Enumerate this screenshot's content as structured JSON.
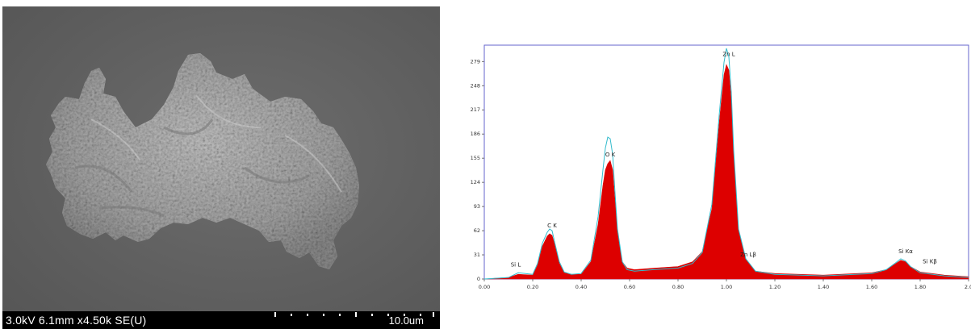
{
  "sem": {
    "parameters_label": "3.0kV 6.1mm x4.50k SE(U)",
    "scale_bar_label": "10.0um",
    "colors": {
      "background": "#5f5f5f",
      "particle": "#a9a9a9",
      "footer": "#000000"
    }
  },
  "chart_data": {
    "type": "area",
    "title": "",
    "xlabel": "",
    "ylabel": "",
    "xlim": [
      0,
      2.0
    ],
    "ylim": [
      0,
      300
    ],
    "x_tick_labels": [
      "0.00",
      "0.20",
      "0.40",
      "0.60",
      "0.80",
      "1.00",
      "1.20",
      "1.40",
      "1.60",
      "1.80",
      "2.0"
    ],
    "y_tick_labels": [
      "0",
      "31",
      "62",
      "93",
      "124",
      "155",
      "186",
      "217",
      "248",
      "279"
    ],
    "y_ticks": [
      0,
      31,
      62,
      93,
      124,
      155,
      186,
      217,
      248,
      279
    ],
    "colors": {
      "fill": "#dd0000",
      "fit_line": "#33bbcc",
      "frame": "#6666cc"
    },
    "series": [
      {
        "x": [
          0.0,
          0.1,
          0.14,
          0.2,
          0.22,
          0.24,
          0.26,
          0.27,
          0.28,
          0.29,
          0.31,
          0.33,
          0.36,
          0.4,
          0.44,
          0.47,
          0.49,
          0.5,
          0.51,
          0.52,
          0.53,
          0.54,
          0.55,
          0.57,
          0.59,
          0.62,
          0.7,
          0.8,
          0.86,
          0.9,
          0.94,
          0.97,
          0.99,
          1.0,
          1.01,
          1.02,
          1.03,
          1.05,
          1.08,
          1.12,
          1.2,
          1.4,
          1.6,
          1.66,
          1.7,
          1.72,
          1.74,
          1.76,
          1.8,
          1.9,
          2.0
        ],
        "y": [
          0,
          2,
          6,
          5,
          18,
          42,
          55,
          58,
          56,
          45,
          20,
          8,
          6,
          6,
          22,
          70,
          120,
          140,
          148,
          152,
          140,
          100,
          60,
          22,
          14,
          12,
          14,
          16,
          22,
          35,
          90,
          200,
          262,
          275,
          268,
          230,
          160,
          62,
          26,
          10,
          7,
          5,
          8,
          12,
          20,
          24,
          22,
          16,
          9,
          5,
          3
        ]
      },
      {
        "x": [
          0.0,
          0.1,
          0.14,
          0.2,
          0.22,
          0.24,
          0.26,
          0.27,
          0.28,
          0.29,
          0.31,
          0.33,
          0.36,
          0.4,
          0.44,
          0.47,
          0.49,
          0.5,
          0.51,
          0.52,
          0.53,
          0.54,
          0.55,
          0.57,
          0.59,
          0.62,
          0.7,
          0.8,
          0.86,
          0.9,
          0.94,
          0.97,
          0.99,
          1.0,
          1.01,
          1.02,
          1.03,
          1.05,
          1.08,
          1.12,
          1.2,
          1.4,
          1.6,
          1.66,
          1.7,
          1.72,
          1.74,
          1.76,
          1.8,
          1.9,
          2.0
        ],
        "y": [
          0,
          2,
          8,
          6,
          20,
          46,
          60,
          64,
          62,
          48,
          22,
          9,
          6,
          7,
          24,
          80,
          140,
          168,
          182,
          180,
          160,
          110,
          64,
          22,
          12,
          10,
          12,
          14,
          20,
          34,
          96,
          210,
          278,
          296,
          285,
          240,
          165,
          64,
          26,
          10,
          6,
          4,
          7,
          12,
          21,
          26,
          23,
          16,
          8,
          4,
          2
        ]
      }
    ],
    "annotations": [
      {
        "text": "Si L",
        "x": 0.13,
        "y": 14
      },
      {
        "text": "C K",
        "x": 0.28,
        "y": 64
      },
      {
        "text": "O K",
        "x": 0.52,
        "y": 155
      },
      {
        "text": "Zn L",
        "x": 1.01,
        "y": 284
      },
      {
        "text": "Zn Lβ",
        "x": 1.09,
        "y": 27
      },
      {
        "text": "Si Kα",
        "x": 1.74,
        "y": 31
      },
      {
        "text": "Si Kβ",
        "x": 1.84,
        "y": 18
      }
    ]
  }
}
